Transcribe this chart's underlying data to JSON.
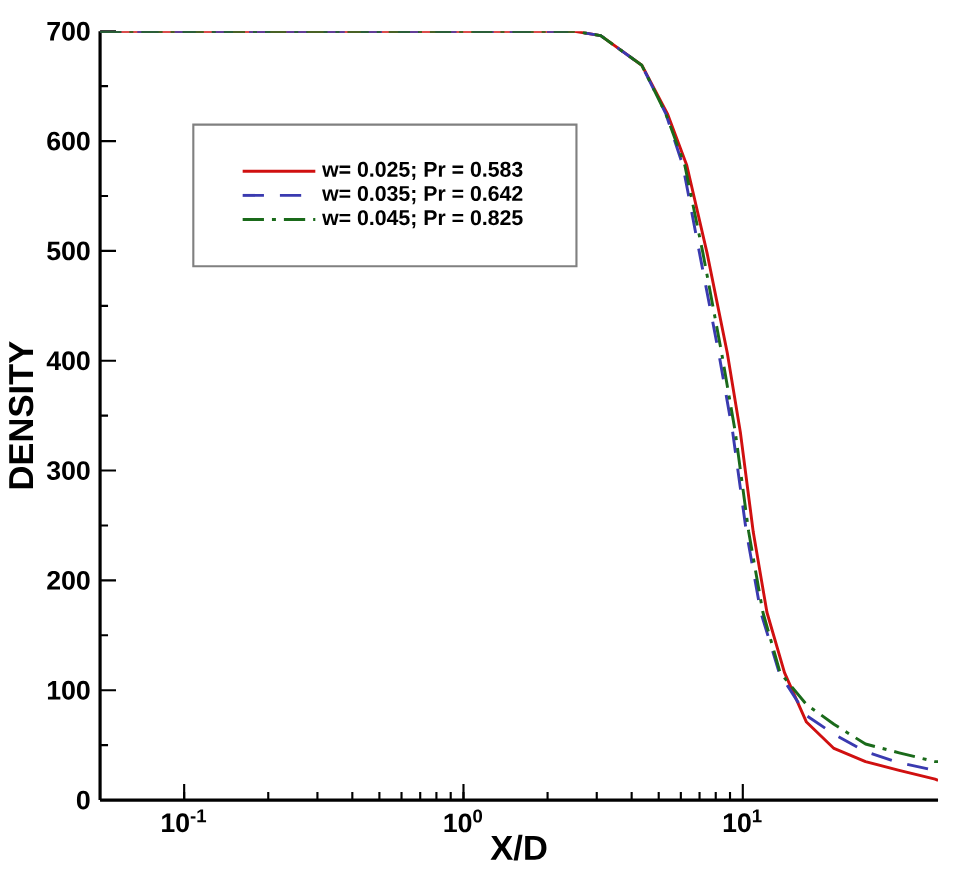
{
  "chart_data": {
    "type": "line",
    "xlabel": "X/D",
    "ylabel": "DENSITY",
    "log": "x",
    "xlim": [
      0.05,
      50
    ],
    "ylim": [
      0,
      700
    ],
    "xticks": [
      {
        "value": 0.1,
        "label": "10$^{-1}$"
      },
      {
        "value": 1,
        "label": "10$^{0}$"
      },
      {
        "value": 10,
        "label": "10$^{1}$"
      }
    ],
    "yticks": [
      0,
      100,
      200,
      300,
      400,
      500,
      600,
      700
    ],
    "grid": false,
    "legend": "top left",
    "marker": "none",
    "series": [
      {
        "name": "w= 0.025; Pr = 0.583",
        "color": "#d01010",
        "line_style": "solid",
        "x": [
          0.05,
          1,
          2.5,
          3.1,
          4.35,
          5.37,
          6.3,
          7.45,
          8.8,
          9.8,
          10.9,
          12.2,
          14.1,
          16.9,
          21.2,
          27.5,
          36.3,
          48.8,
          50
        ],
        "values": [
          700,
          700,
          700,
          696,
          669,
          625,
          578,
          498,
          407,
          335,
          244,
          171,
          116,
          71,
          47,
          35,
          27,
          19,
          18
        ]
      },
      {
        "name": "w= 0.035; Pr = 0.642",
        "color": "#3a3ab0",
        "line_style": "dashed",
        "x": [
          0.05,
          1,
          2.5,
          3.1,
          4.35,
          5.3,
          6.1,
          7.0,
          8.2,
          9.2,
          10.3,
          11.6,
          13.5,
          16.9,
          21.2,
          27.5,
          36.3,
          48.8,
          50
        ],
        "values": [
          700,
          700,
          700,
          696,
          669,
          625,
          578,
          498,
          407,
          335,
          244,
          171,
          116,
          77,
          60,
          44,
          34,
          27,
          27
        ]
      },
      {
        "name": "w= 0.045; Pr = 0.825",
        "color": "#1a6a1a",
        "line_style": "dashdot",
        "x": [
          0.05,
          1,
          2.5,
          3.1,
          4.35,
          5.3,
          6.2,
          7.2,
          8.4,
          9.4,
          10.5,
          11.8,
          13.6,
          16.9,
          21.2,
          27.5,
          36.3,
          48.8,
          50
        ],
        "values": [
          700,
          700,
          700,
          696,
          669,
          625,
          578,
          498,
          407,
          335,
          244,
          171,
          116,
          87,
          69,
          51,
          43,
          35,
          35
        ]
      }
    ]
  }
}
